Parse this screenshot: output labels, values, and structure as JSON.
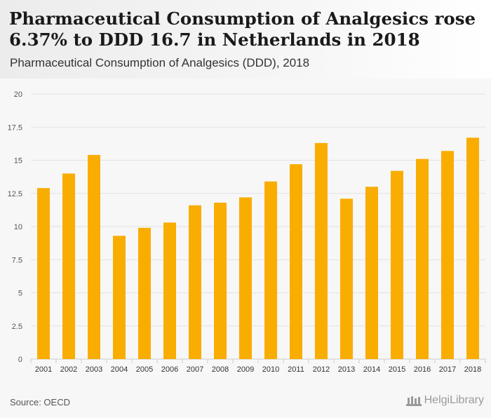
{
  "header": {
    "title": "Pharmaceutical Consumption of Analgesics rose 6.37% to DDD 16.7 in Netherlands in 2018",
    "subtitle": "Pharmaceutical Consumption of Analgesics (DDD), 2018"
  },
  "footer": {
    "source": "Source: OECD",
    "brand": "HelgiLibrary"
  },
  "colors": {
    "bar": "#f9ad00",
    "grid": "#e2e2e2",
    "tick_text": "#555555",
    "plot_bg": "#f7f7f7"
  },
  "chart_data": {
    "type": "bar",
    "categories": [
      "2001",
      "2002",
      "2003",
      "2004",
      "2005",
      "2006",
      "2007",
      "2008",
      "2009",
      "2010",
      "2011",
      "2012",
      "2013",
      "2014",
      "2015",
      "2016",
      "2017",
      "2018"
    ],
    "values": [
      12.9,
      14.0,
      15.4,
      9.3,
      9.9,
      10.3,
      11.6,
      11.8,
      12.2,
      13.4,
      14.7,
      16.3,
      12.1,
      13.0,
      14.2,
      15.1,
      15.7,
      16.7
    ],
    "ylim": [
      0,
      20
    ],
    "yticks": [
      0,
      2.5,
      5,
      7.5,
      10,
      12.5,
      15,
      17.5,
      20
    ],
    "ytick_labels": [
      "0",
      "2.5",
      "5",
      "7.5",
      "10",
      "12.5",
      "15",
      "17.5",
      "20"
    ],
    "grid": true,
    "legend": false
  }
}
